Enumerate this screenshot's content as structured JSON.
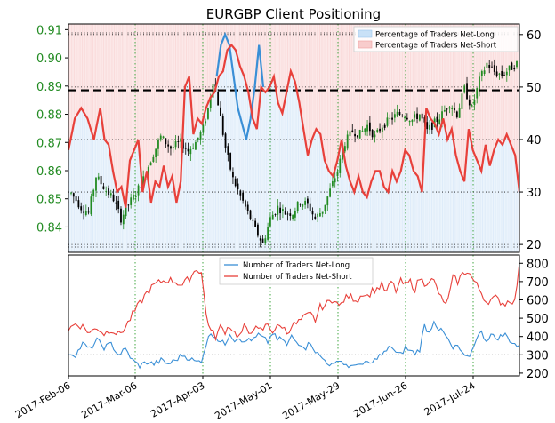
{
  "chart_data": [
    {
      "type": "line",
      "title": "EURGBP Client Positioning",
      "x_ticks": [
        "2017-Feb-06",
        "2017-Mar-06",
        "2017-Apr-03",
        "2017-May-01",
        "2017-May-29",
        "2017-Jun-26",
        "2017-Jul-24"
      ],
      "y_left_ticks": [
        "0.84",
        "0.85",
        "0.86",
        "0.87",
        "0.88",
        "0.89",
        "0.90",
        "0.91"
      ],
      "y_left_range": [
        0.831,
        0.912
      ],
      "y_right_ticks": [
        "20",
        "30",
        "40",
        "50",
        "60"
      ],
      "y_right_range": [
        18.5,
        62
      ],
      "reference_line": 0.8885,
      "legend": [
        "Percentage of Traders Net-Long",
        "Percentage of Traders Net-Short"
      ],
      "legend_position": "top-right",
      "grid": true,
      "colors": {
        "long_fill": "#c9e1f7",
        "short_fill": "#f8cccc",
        "price_up": "#228b22",
        "price_down": "#000000",
        "short_line": "#e8403a",
        "long_line": "#3a8fd6",
        "left_axis_text": "#228b22"
      },
      "price_anchors": [
        [
          0,
          0.852
        ],
        [
          4,
          0.847
        ],
        [
          7,
          0.845
        ],
        [
          10,
          0.858
        ],
        [
          14,
          0.853
        ],
        [
          17,
          0.85
        ],
        [
          20,
          0.843
        ],
        [
          23,
          0.848
        ],
        [
          26,
          0.852
        ],
        [
          29,
          0.857
        ],
        [
          32,
          0.864
        ],
        [
          36,
          0.872
        ],
        [
          40,
          0.868
        ],
        [
          44,
          0.87
        ],
        [
          47,
          0.867
        ],
        [
          50,
          0.87
        ],
        [
          53,
          0.875
        ],
        [
          55,
          0.882
        ],
        [
          57,
          0.892
        ],
        [
          59,
          0.884
        ],
        [
          62,
          0.868
        ],
        [
          65,
          0.857
        ],
        [
          68,
          0.851
        ],
        [
          71,
          0.845
        ],
        [
          74,
          0.839
        ],
        [
          77,
          0.834
        ],
        [
          80,
          0.843
        ],
        [
          83,
          0.847
        ],
        [
          86,
          0.845
        ],
        [
          89,
          0.845
        ],
        [
          92,
          0.849
        ],
        [
          95,
          0.848
        ],
        [
          98,
          0.843
        ],
        [
          101,
          0.846
        ],
        [
          104,
          0.853
        ],
        [
          107,
          0.86
        ],
        [
          110,
          0.87
        ],
        [
          113,
          0.874
        ],
        [
          116,
          0.873
        ],
        [
          119,
          0.876
        ],
        [
          122,
          0.872
        ],
        [
          125,
          0.876
        ],
        [
          128,
          0.878
        ],
        [
          131,
          0.88
        ],
        [
          134,
          0.88
        ],
        [
          137,
          0.878
        ],
        [
          140,
          0.88
        ],
        [
          143,
          0.874
        ],
        [
          146,
          0.877
        ],
        [
          149,
          0.88
        ],
        [
          152,
          0.884
        ],
        [
          155,
          0.88
        ],
        [
          158,
          0.889
        ],
        [
          161,
          0.882
        ],
        [
          164,
          0.892
        ],
        [
          167,
          0.898
        ],
        [
          170,
          0.895
        ],
        [
          173,
          0.894
        ],
        [
          176,
          0.896
        ],
        [
          179,
          0.898
        ]
      ],
      "short_pct_anchors": [
        [
          0,
          38
        ],
        [
          3,
          44
        ],
        [
          6,
          46
        ],
        [
          9,
          44
        ],
        [
          12,
          40
        ],
        [
          15,
          46
        ],
        [
          17,
          40
        ],
        [
          19,
          39
        ],
        [
          21,
          34
        ],
        [
          23,
          30
        ],
        [
          25,
          31
        ],
        [
          27,
          27
        ],
        [
          29,
          36
        ],
        [
          31,
          38
        ],
        [
          33,
          40
        ],
        [
          35,
          30
        ],
        [
          37,
          34
        ],
        [
          39,
          28
        ],
        [
          41,
          32
        ],
        [
          43,
          31
        ],
        [
          45,
          35
        ],
        [
          47,
          31
        ],
        [
          49,
          33
        ],
        [
          51,
          28
        ],
        [
          53,
          32
        ],
        [
          55,
          50
        ],
        [
          57,
          52
        ],
        [
          59,
          41
        ],
        [
          61,
          44
        ],
        [
          63,
          43
        ],
        [
          65,
          46
        ],
        [
          67,
          48
        ],
        [
          69,
          49
        ],
        [
          71,
          52
        ],
        [
          73,
          53
        ],
        [
          75,
          57
        ],
        [
          77,
          58
        ],
        [
          79,
          57
        ],
        [
          81,
          54
        ],
        [
          83,
          52
        ],
        [
          85,
          49
        ],
        [
          87,
          44
        ],
        [
          89,
          42
        ],
        [
          91,
          50
        ],
        [
          93,
          49
        ],
        [
          95,
          50
        ],
        [
          97,
          52
        ],
        [
          99,
          47
        ],
        [
          101,
          45
        ],
        [
          103,
          49
        ],
        [
          105,
          53
        ],
        [
          107,
          51
        ],
        [
          109,
          47
        ],
        [
          111,
          42
        ],
        [
          113,
          37
        ],
        [
          115,
          40
        ],
        [
          117,
          42
        ],
        [
          119,
          41
        ],
        [
          121,
          36
        ],
        [
          123,
          34
        ],
        [
          125,
          33
        ],
        [
          127,
          36
        ],
        [
          129,
          40
        ],
        [
          131,
          35
        ],
        [
          133,
          32
        ],
        [
          135,
          30
        ],
        [
          137,
          33
        ],
        [
          139,
          30
        ],
        [
          141,
          29
        ],
        [
          143,
          32
        ],
        [
          145,
          34
        ],
        [
          147,
          34
        ],
        [
          149,
          31
        ],
        [
          151,
          30
        ],
        [
          153,
          34
        ],
        [
          155,
          32
        ],
        [
          157,
          34
        ],
        [
          159,
          38
        ],
        [
          161,
          37
        ],
        [
          163,
          34
        ],
        [
          165,
          33
        ],
        [
          167,
          30
        ],
        [
          169,
          46
        ],
        [
          171,
          44
        ],
        [
          173,
          43
        ],
        [
          175,
          41
        ],
        [
          177,
          44
        ],
        [
          179,
          40
        ],
        [
          181,
          42
        ],
        [
          183,
          37
        ],
        [
          185,
          34
        ],
        [
          187,
          32
        ],
        [
          189,
          42
        ],
        [
          191,
          38
        ],
        [
          193,
          36
        ],
        [
          195,
          34
        ],
        [
          197,
          39
        ],
        [
          199,
          35
        ],
        [
          201,
          38
        ],
        [
          203,
          40
        ],
        [
          205,
          39
        ],
        [
          207,
          41
        ],
        [
          209,
          39
        ],
        [
          211,
          37
        ],
        [
          213,
          30
        ]
      ],
      "long_highlight": [
        [
          70,
          52
        ],
        [
          72,
          58
        ],
        [
          74,
          60
        ],
        [
          76,
          58
        ],
        [
          78,
          52
        ],
        [
          80,
          46
        ],
        [
          84,
          40
        ],
        [
          86,
          44
        ],
        [
          88,
          50
        ],
        [
          90,
          58
        ],
        [
          92,
          50
        ]
      ]
    },
    {
      "type": "line",
      "y_ticks": [
        "200",
        "300",
        "400",
        "500",
        "600",
        "700",
        "800"
      ],
      "y_range": [
        185,
        845
      ],
      "legend": [
        "Number of Traders Net-Long",
        "Number of Traders Net-Short"
      ],
      "legend_position": "top-center",
      "grid": true,
      "colors": {
        "long": "#3a8fd6",
        "short": "#e8403a"
      },
      "net_short_anchors": [
        [
          0,
          440
        ],
        [
          3,
          470
        ],
        [
          6,
          455
        ],
        [
          9,
          420
        ],
        [
          12,
          450
        ],
        [
          15,
          415
        ],
        [
          18,
          440
        ],
        [
          21,
          410
        ],
        [
          24,
          450
        ],
        [
          27,
          520
        ],
        [
          30,
          580
        ],
        [
          33,
          640
        ],
        [
          36,
          680
        ],
        [
          39,
          700
        ],
        [
          42,
          710
        ],
        [
          45,
          700
        ],
        [
          48,
          680
        ],
        [
          51,
          720
        ],
        [
          54,
          770
        ],
        [
          56,
          750
        ],
        [
          58,
          520
        ],
        [
          60,
          430
        ],
        [
          62,
          400
        ],
        [
          64,
          450
        ],
        [
          66,
          430
        ],
        [
          68,
          460
        ],
        [
          70,
          420
        ],
        [
          72,
          400
        ],
        [
          74,
          450
        ],
        [
          76,
          420
        ],
        [
          78,
          450
        ],
        [
          80,
          430
        ],
        [
          82,
          440
        ],
        [
          84,
          470
        ],
        [
          86,
          430
        ],
        [
          88,
          450
        ],
        [
          90,
          460
        ],
        [
          92,
          420
        ],
        [
          94,
          460
        ],
        [
          96,
          470
        ],
        [
          98,
          490
        ],
        [
          100,
          510
        ],
        [
          102,
          520
        ],
        [
          104,
          490
        ],
        [
          106,
          560
        ],
        [
          108,
          570
        ],
        [
          110,
          590
        ],
        [
          112,
          610
        ],
        [
          114,
          560
        ],
        [
          116,
          600
        ],
        [
          118,
          620
        ],
        [
          120,
          610
        ],
        [
          122,
          600
        ],
        [
          124,
          640
        ],
        [
          126,
          620
        ],
        [
          128,
          650
        ],
        [
          130,
          660
        ],
        [
          132,
          680
        ],
        [
          134,
          640
        ],
        [
          136,
          700
        ],
        [
          138,
          650
        ],
        [
          140,
          700
        ],
        [
          142,
          680
        ],
        [
          144,
          700
        ],
        [
          146,
          660
        ],
        [
          148,
          720
        ],
        [
          150,
          690
        ],
        [
          152,
          710
        ],
        [
          154,
          700
        ],
        [
          156,
          640
        ],
        [
          158,
          580
        ],
        [
          160,
          600
        ],
        [
          162,
          720
        ],
        [
          164,
          700
        ],
        [
          166,
          740
        ],
        [
          168,
          760
        ],
        [
          170,
          720
        ],
        [
          172,
          680
        ],
        [
          174,
          640
        ],
        [
          176,
          590
        ],
        [
          178,
          600
        ],
        [
          180,
          610
        ],
        [
          182,
          590
        ],
        [
          184,
          580
        ],
        [
          186,
          600
        ],
        [
          188,
          590
        ],
        [
          190,
          790
        ]
      ],
      "net_long_anchors": [
        [
          0,
          310
        ],
        [
          3,
          300
        ],
        [
          6,
          360
        ],
        [
          9,
          330
        ],
        [
          12,
          380
        ],
        [
          15,
          340
        ],
        [
          18,
          360
        ],
        [
          21,
          300
        ],
        [
          24,
          330
        ],
        [
          27,
          270
        ],
        [
          30,
          240
        ],
        [
          33,
          260
        ],
        [
          36,
          250
        ],
        [
          39,
          270
        ],
        [
          42,
          250
        ],
        [
          45,
          270
        ],
        [
          48,
          300
        ],
        [
          51,
          280
        ],
        [
          54,
          260
        ],
        [
          56,
          270
        ],
        [
          58,
          360
        ],
        [
          60,
          420
        ],
        [
          62,
          400
        ],
        [
          64,
          370
        ],
        [
          66,
          360
        ],
        [
          68,
          420
        ],
        [
          70,
          380
        ],
        [
          72,
          400
        ],
        [
          74,
          360
        ],
        [
          76,
          390
        ],
        [
          78,
          380
        ],
        [
          80,
          410
        ],
        [
          82,
          390
        ],
        [
          84,
          370
        ],
        [
          86,
          420
        ],
        [
          88,
          380
        ],
        [
          90,
          390
        ],
        [
          92,
          350
        ],
        [
          94,
          400
        ],
        [
          96,
          370
        ],
        [
          98,
          360
        ],
        [
          100,
          340
        ],
        [
          102,
          370
        ],
        [
          104,
          320
        ],
        [
          106,
          290
        ],
        [
          108,
          270
        ],
        [
          110,
          250
        ],
        [
          112,
          240
        ],
        [
          114,
          280
        ],
        [
          116,
          250
        ],
        [
          118,
          240
        ],
        [
          120,
          230
        ],
        [
          122,
          260
        ],
        [
          124,
          240
        ],
        [
          126,
          260
        ],
        [
          128,
          250
        ],
        [
          130,
          290
        ],
        [
          132,
          300
        ],
        [
          134,
          320
        ],
        [
          136,
          350
        ],
        [
          138,
          310
        ],
        [
          140,
          300
        ],
        [
          142,
          340
        ],
        [
          144,
          320
        ],
        [
          146,
          310
        ],
        [
          148,
          330
        ],
        [
          150,
          460
        ],
        [
          152,
          420
        ],
        [
          154,
          490
        ],
        [
          156,
          440
        ],
        [
          158,
          420
        ],
        [
          160,
          380
        ],
        [
          162,
          330
        ],
        [
          164,
          350
        ],
        [
          166,
          300
        ],
        [
          168,
          280
        ],
        [
          170,
          320
        ],
        [
          172,
          400
        ],
        [
          174,
          420
        ],
        [
          176,
          380
        ],
        [
          178,
          410
        ],
        [
          180,
          390
        ],
        [
          182,
          400
        ],
        [
          184,
          410
        ],
        [
          186,
          380
        ],
        [
          188,
          360
        ],
        [
          190,
          340
        ]
      ]
    }
  ]
}
